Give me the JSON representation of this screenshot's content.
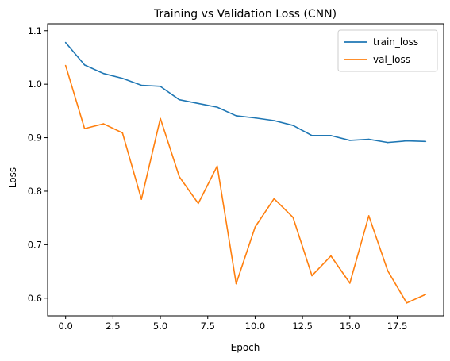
{
  "chart_data": {
    "type": "line",
    "title": "Training vs Validation Loss (CNN)",
    "xlabel": "Epoch",
    "ylabel": "Loss",
    "xlim": [
      -0.95,
      19.95
    ],
    "ylim": [
      0.567,
      1.113
    ],
    "xticks": [
      0.0,
      2.5,
      5.0,
      7.5,
      10.0,
      12.5,
      15.0,
      17.5
    ],
    "xtick_labels": [
      "0.0",
      "2.5",
      "5.0",
      "7.5",
      "10.0",
      "12.5",
      "15.0",
      "17.5"
    ],
    "yticks": [
      0.6,
      0.7,
      0.8,
      0.9,
      1.0,
      1.1
    ],
    "ytick_labels": [
      "0.6",
      "0.7",
      "0.8",
      "0.9",
      "1.0",
      "1.1"
    ],
    "grid": false,
    "legend_position": "top-right",
    "x": [
      0,
      1,
      2,
      3,
      4,
      5,
      6,
      7,
      8,
      9,
      10,
      11,
      12,
      13,
      14,
      15,
      16,
      17,
      18,
      19
    ],
    "series": [
      {
        "name": "train_loss",
        "color": "#1f77b4",
        "values": [
          1.078,
          1.036,
          1.02,
          1.011,
          0.998,
          0.996,
          0.971,
          0.964,
          0.957,
          0.941,
          0.937,
          0.932,
          0.923,
          0.904,
          0.904,
          0.895,
          0.897,
          0.891,
          0.894,
          0.893
        ]
      },
      {
        "name": "val_loss",
        "color": "#ff7f0e",
        "values": [
          1.035,
          0.917,
          0.926,
          0.909,
          0.785,
          0.936,
          0.827,
          0.777,
          0.847,
          0.627,
          0.733,
          0.786,
          0.751,
          0.642,
          0.679,
          0.628,
          0.754,
          0.651,
          0.591,
          0.607
        ]
      }
    ]
  }
}
